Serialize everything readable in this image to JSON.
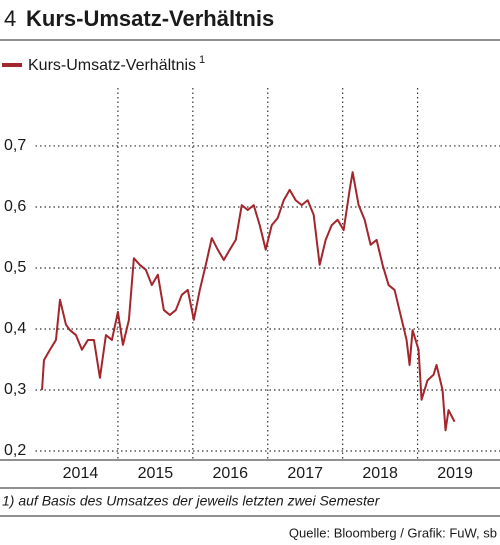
{
  "chart_data": {
    "type": "line",
    "title_number": "4",
    "title": "Kurs-Umsatz-Verhältnis",
    "legend_note": "1",
    "footnote": "1) auf Basis des Umsatzes der jeweils letzten zwei Semester",
    "source": "Quelle: Bloomberg / Grafik: FuW, sb",
    "xlim": [
      2013.9,
      2020.1
    ],
    "ylim": [
      0.2,
      0.795
    ],
    "yticks": [
      {
        "value": 0.2,
        "label": "0,2"
      },
      {
        "value": 0.3,
        "label": "0,3"
      },
      {
        "value": 0.4,
        "label": "0,4"
      },
      {
        "value": 0.5,
        "label": "0,5"
      },
      {
        "value": 0.6,
        "label": "0,6"
      },
      {
        "value": 0.7,
        "label": "0,7"
      }
    ],
    "xticks": [
      {
        "value": 2014.5,
        "label": "2014"
      },
      {
        "value": 2015.5,
        "label": "2015"
      },
      {
        "value": 2016.5,
        "label": "2016"
      },
      {
        "value": 2017.5,
        "label": "2017"
      },
      {
        "value": 2018.5,
        "label": "2018"
      },
      {
        "value": 2019.5,
        "label": "2019"
      }
    ],
    "xgrid": [
      2015,
      2016,
      2017,
      2018,
      2019
    ],
    "grid": true,
    "series": [
      {
        "name": "Kurs-Umsatz-Verhältnis",
        "color": "#a3262c",
        "x": [
          2013.987,
          2014.013,
          2014.093,
          2014.173,
          2014.227,
          2014.307,
          2014.36,
          2014.44,
          2014.52,
          2014.6,
          2014.68,
          2014.76,
          2014.84,
          2014.92,
          2015.0,
          2015.067,
          2015.147,
          2015.213,
          2015.293,
          2015.373,
          2015.453,
          2015.533,
          2015.613,
          2015.693,
          2015.773,
          2015.853,
          2015.933,
          2016.013,
          2016.093,
          2016.173,
          2016.253,
          2016.333,
          2016.413,
          2016.493,
          2016.573,
          2016.653,
          2016.733,
          2016.813,
          2016.893,
          2016.973,
          2017.053,
          2017.133,
          2017.213,
          2017.293,
          2017.373,
          2017.453,
          2017.533,
          2017.613,
          2017.693,
          2017.773,
          2017.853,
          2017.933,
          2018.013,
          2018.093,
          2018.133,
          2018.213,
          2018.293,
          2018.373,
          2018.453,
          2018.533,
          2018.613,
          2018.693,
          2018.773,
          2018.853,
          2018.893,
          2018.933,
          2019.013,
          2019.053,
          2019.133,
          2019.213,
          2019.253,
          2019.333,
          2019.373,
          2019.413,
          2019.493
        ],
        "values": [
          0.3,
          0.349,
          0.366,
          0.382,
          0.448,
          0.407,
          0.398,
          0.39,
          0.366,
          0.382,
          0.382,
          0.32,
          0.39,
          0.382,
          0.428,
          0.374,
          0.415,
          0.516,
          0.505,
          0.497,
          0.472,
          0.489,
          0.431,
          0.423,
          0.431,
          0.456,
          0.464,
          0.415,
          0.464,
          0.505,
          0.549,
          0.53,
          0.513,
          0.53,
          0.546,
          0.603,
          0.595,
          0.603,
          0.57,
          0.53,
          0.57,
          0.582,
          0.611,
          0.628,
          0.611,
          0.603,
          0.611,
          0.587,
          0.505,
          0.546,
          0.57,
          0.579,
          0.562,
          0.628,
          0.657,
          0.603,
          0.579,
          0.538,
          0.546,
          0.505,
          0.472,
          0.464,
          0.423,
          0.382,
          0.341,
          0.398,
          0.366,
          0.284,
          0.316,
          0.325,
          0.341,
          0.3,
          0.234,
          0.267,
          0.248
        ]
      }
    ]
  }
}
